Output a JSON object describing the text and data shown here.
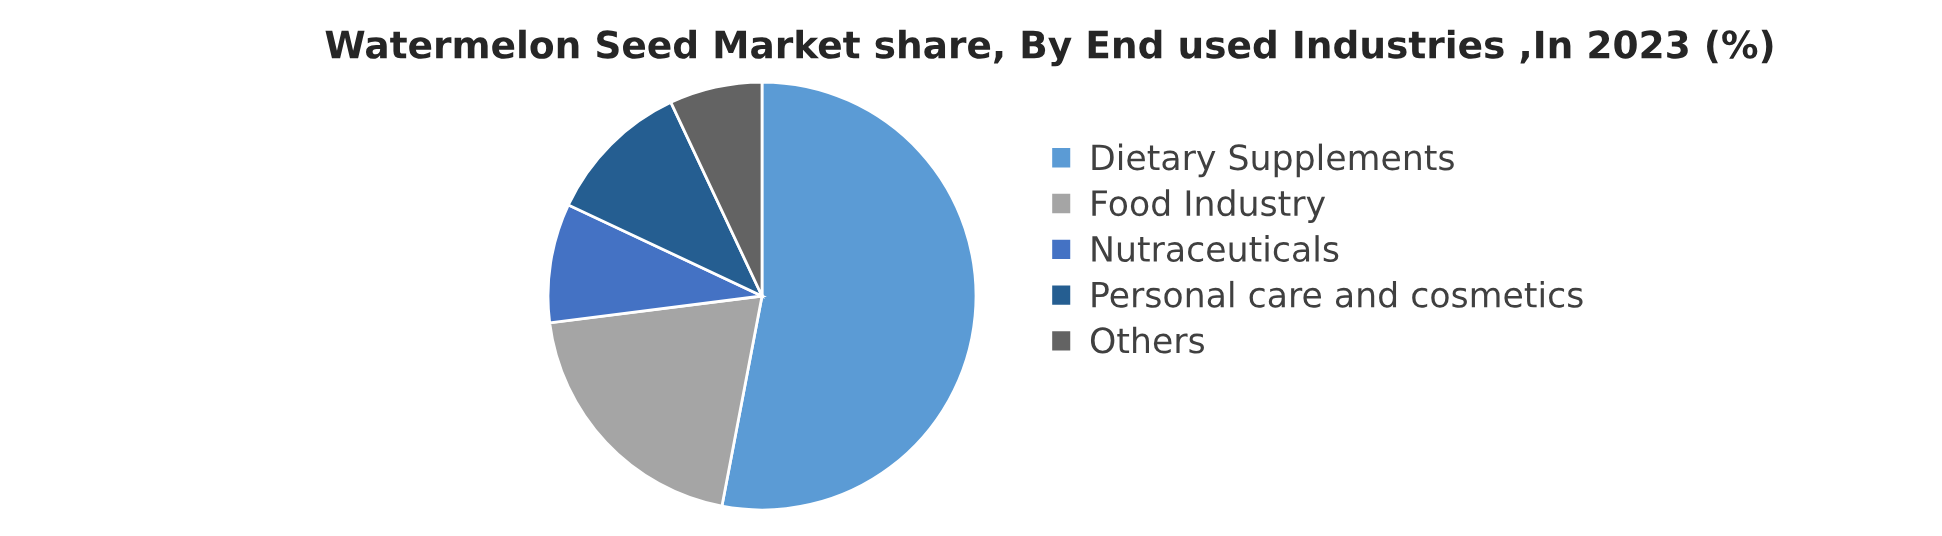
{
  "chart_data": {
    "type": "pie",
    "title": "Watermelon Seed Market share, By End used Industries ,In 2023 (%)",
    "categories": [
      "Dietary Supplements",
      "Food Industry",
      "Nutraceuticals",
      "Personal care and cosmetics",
      "Others"
    ],
    "values": [
      53,
      20,
      9,
      11,
      7
    ],
    "colors": [
      "#5b9bd5",
      "#a5a5a5",
      "#4472c4",
      "#255e91",
      "#636363"
    ],
    "legend": "right"
  }
}
